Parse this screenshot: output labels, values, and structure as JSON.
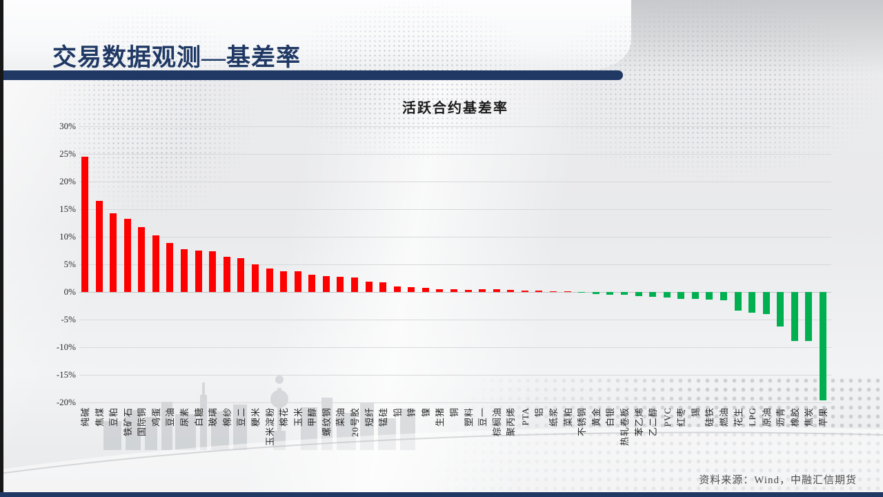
{
  "header": {
    "title": "交易数据观测—基差率"
  },
  "theme": {
    "accent_navy": "#1F3864",
    "positive_bar": "#FF0000",
    "negative_bar": "#00B050"
  },
  "chart_data": {
    "type": "bar",
    "title": "活跃合约基差率",
    "xlabel": "",
    "ylabel": "",
    "unit": "%",
    "ylim": [
      -20,
      30
    ],
    "grid": true,
    "legend": false,
    "yticks": [
      {
        "value": 30,
        "label": "30%"
      },
      {
        "value": 25,
        "label": "25%"
      },
      {
        "value": 20,
        "label": "20%"
      },
      {
        "value": 15,
        "label": "15%"
      },
      {
        "value": 10,
        "label": "10%"
      },
      {
        "value": 5,
        "label": "5%"
      },
      {
        "value": 0,
        "label": "0%"
      },
      {
        "value": -5,
        "label": "-5%"
      },
      {
        "value": -10,
        "label": "-10%"
      },
      {
        "value": -15,
        "label": "-15%"
      },
      {
        "value": -20,
        "label": "-20%"
      }
    ],
    "categories": [
      "纯碱",
      "焦煤",
      "豆粕",
      "铁矿石",
      "国际铜",
      "鸡蛋",
      "豆油",
      "尿素",
      "白糖",
      "玻璃",
      "棉纱",
      "豆二",
      "粳米",
      "玉米淀粉",
      "棉花",
      "玉米",
      "甲醇",
      "螺纹钢",
      "菜油",
      "20号胶",
      "短纤",
      "锰硅",
      "铅",
      "锌",
      "镍",
      "生猪",
      "铜",
      "塑料",
      "豆一",
      "棕榈油",
      "聚丙烯",
      "PTA",
      "铝",
      "纸浆",
      "菜粕",
      "不锈钢",
      "黄金",
      "白银",
      "热轧卷板",
      "苯乙烯",
      "乙二醇",
      "PVC",
      "红枣",
      "锡",
      "硅铁",
      "燃油",
      "花生",
      "LPG",
      "原油",
      "沥青",
      "橡胶",
      "焦炭",
      "苹果"
    ],
    "values": [
      24.5,
      16.5,
      14.3,
      13.2,
      11.8,
      10.2,
      8.9,
      7.7,
      7.5,
      7.4,
      6.4,
      6.1,
      5.0,
      4.3,
      3.8,
      3.7,
      3.1,
      2.9,
      2.7,
      2.6,
      1.9,
      1.7,
      1.0,
      0.9,
      0.8,
      0.5,
      0.45,
      0.4,
      0.5,
      0.5,
      0.4,
      0.3,
      0.2,
      0.12,
      0.08,
      -0.15,
      -0.35,
      -0.45,
      -0.55,
      -0.7,
      -0.85,
      -1.0,
      -1.2,
      -1.3,
      -1.4,
      -1.5,
      -3.4,
      -3.8,
      -4.0,
      -6.2,
      -8.9,
      -8.9,
      -19.6
    ]
  },
  "footer": {
    "source": "资料来源：Wind，中融汇信期货"
  }
}
